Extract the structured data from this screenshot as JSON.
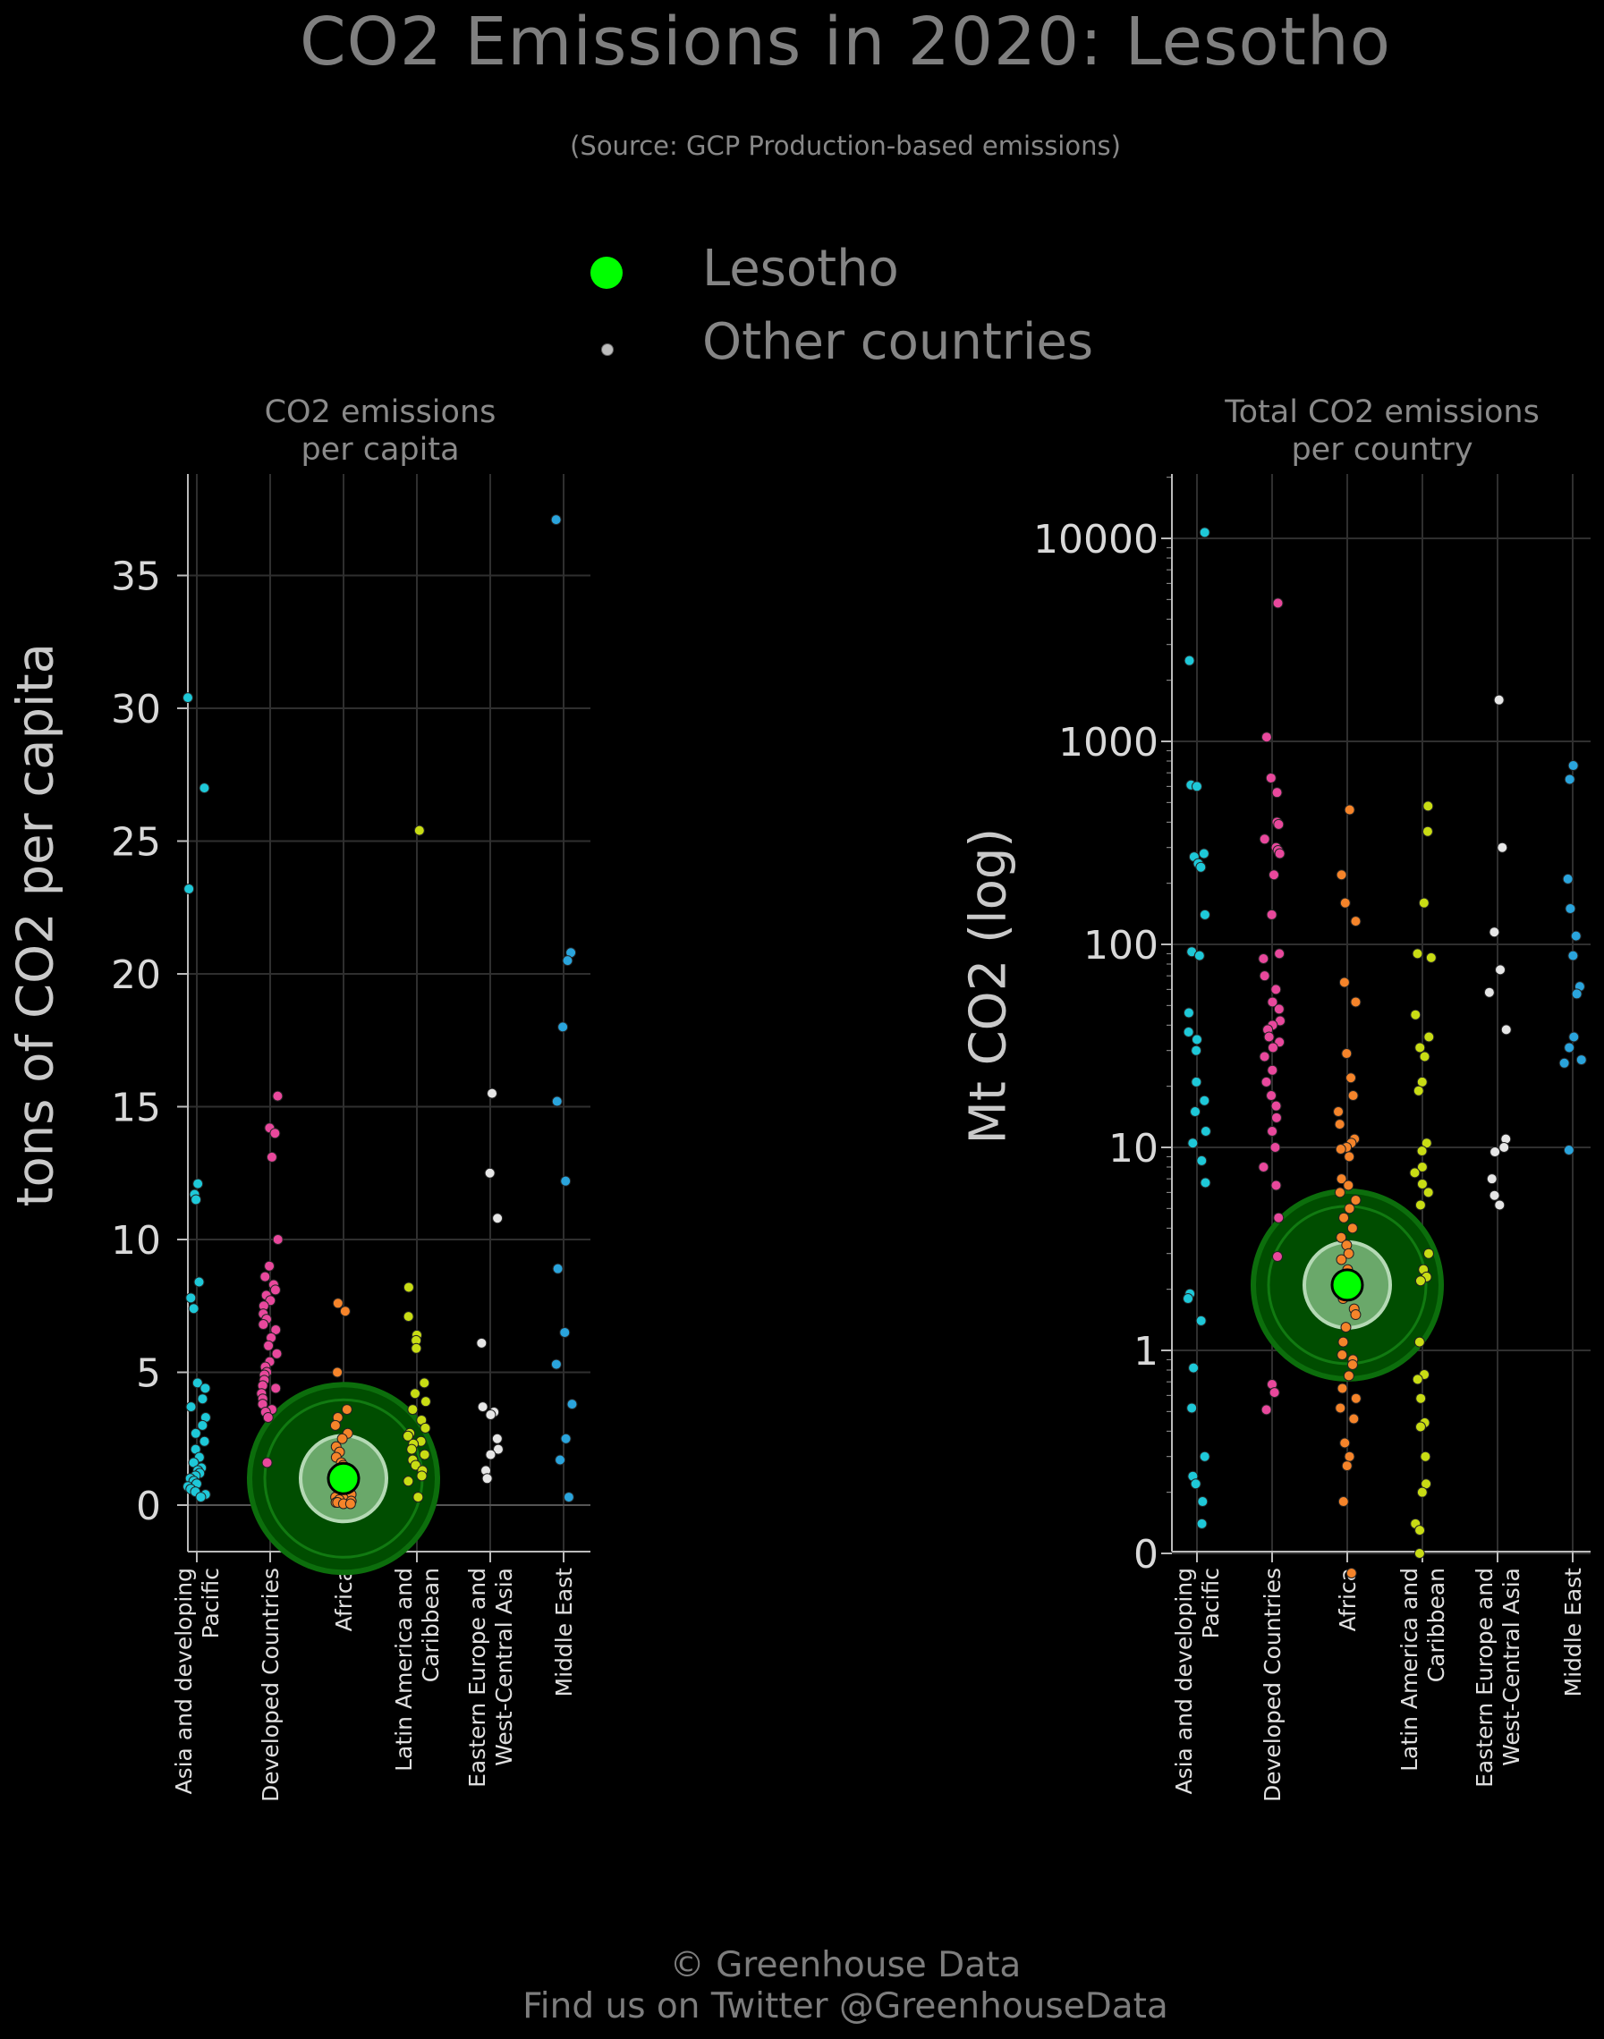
{
  "title": "CO2 Emissions in 2020: Lesotho",
  "subtitle": "(Source: GCP Production-based emissions)",
  "legend": {
    "highlight_label": "Lesotho",
    "other_label": "Other countries",
    "highlight_color": "#00ff00",
    "other_color": "#bdbdbd"
  },
  "footer": {
    "line1": "© Greenhouse Data",
    "line2": "Find us on Twitter @GreenhouseData"
  },
  "colors": {
    "Asia and developing Pacific": "#1ec8d8",
    "Developed Countries": "#e8489c",
    "Africa": "#f5842a",
    "Latin America and Caribbean": "#c8dc14",
    "Eastern Europe and West-Central Asia": "#e6e6e6",
    "Middle East": "#2aa4dc"
  },
  "chart_data": [
    {
      "type": "scatter",
      "title": "CO2 emissions\nper capita",
      "ylabel": "tons of CO2 per capita",
      "yscale": "linear",
      "ylim": [
        -1.8,
        39
      ],
      "yticks": [
        "0",
        "5",
        "10",
        "15",
        "20",
        "25",
        "30",
        "35"
      ],
      "categories": [
        "Asia and developing Pacific",
        "Developed Countries",
        "Africa",
        "Latin America and Caribbean",
        "Eastern Europe and West-Central Asia",
        "Middle East"
      ],
      "category_labels": [
        [
          "Asia and developing",
          "Pacific"
        ],
        [
          "Developed Countries"
        ],
        [
          "Africa"
        ],
        [
          "Latin America and",
          "Caribbean"
        ],
        [
          "Eastern Europe and",
          "West-Central Asia"
        ],
        [
          "Middle East"
        ]
      ],
      "highlight": {
        "category": "Africa",
        "value": 1.0
      },
      "series": [
        {
          "category": "Asia and developing Pacific",
          "values": [
            30.4,
            27.0,
            23.2,
            12.1,
            11.7,
            11.5,
            8.4,
            7.8,
            7.4,
            4.6,
            4.4,
            4.0,
            3.7,
            3.3,
            3.0,
            2.7,
            2.4,
            2.1,
            1.8,
            1.6,
            1.4,
            1.3,
            1.2,
            1.1,
            1.0,
            0.9,
            0.8,
            0.7,
            0.6,
            0.5,
            0.4,
            0.3
          ]
        },
        {
          "category": "Developed Countries",
          "values": [
            15.4,
            14.2,
            14.0,
            13.1,
            10.0,
            9.0,
            8.6,
            8.3,
            8.1,
            7.9,
            7.7,
            7.5,
            7.2,
            7.0,
            6.8,
            6.6,
            6.3,
            6.0,
            5.7,
            5.4,
            5.2,
            5.0,
            4.9,
            4.7,
            4.5,
            4.4,
            4.2,
            4.0,
            3.8,
            3.6,
            3.5,
            3.3,
            1.6
          ]
        },
        {
          "category": "Africa",
          "values": [
            7.6,
            7.3,
            5.0,
            3.6,
            3.3,
            3.0,
            2.7,
            2.5,
            2.2,
            2.0,
            1.8,
            1.6,
            1.5,
            1.3,
            1.2,
            1.1,
            1.0,
            0.9,
            0.8,
            0.7,
            0.6,
            0.5,
            0.4,
            0.35,
            0.3,
            0.25,
            0.2,
            0.15,
            0.1,
            0.1,
            0.05,
            0.05
          ]
        },
        {
          "category": "Latin America and Caribbean",
          "values": [
            25.4,
            8.2,
            7.1,
            6.4,
            6.2,
            5.9,
            4.6,
            4.2,
            3.9,
            3.6,
            3.2,
            2.9,
            2.7,
            2.6,
            2.4,
            2.3,
            2.1,
            1.9,
            1.7,
            1.5,
            1.3,
            1.1,
            0.9,
            0.3
          ]
        },
        {
          "category": "Eastern Europe and West-Central Asia",
          "values": [
            15.5,
            12.5,
            10.8,
            6.1,
            3.7,
            3.5,
            3.4,
            2.5,
            2.1,
            1.9,
            1.3,
            1.0
          ]
        },
        {
          "category": "Middle East",
          "values": [
            37.1,
            20.8,
            20.5,
            18.0,
            15.2,
            12.2,
            8.9,
            6.5,
            5.3,
            3.8,
            2.5,
            1.7,
            0.3
          ]
        }
      ]
    },
    {
      "type": "scatter",
      "title": "Total CO2 emissions\nper country",
      "ylabel": "Mt CO2 (log)",
      "yscale": "log",
      "ylim": [
        0,
        21000
      ],
      "yticks": [
        "0",
        "1",
        "10",
        "100",
        "1000",
        "10000"
      ],
      "categories": [
        "Asia and developing Pacific",
        "Developed Countries",
        "Africa",
        "Latin America and Caribbean",
        "Eastern Europe and West-Central Asia",
        "Middle East"
      ],
      "category_labels": [
        [
          "Asia and developing",
          "Pacific"
        ],
        [
          "Developed Countries"
        ],
        [
          "Africa"
        ],
        [
          "Latin America and",
          "Caribbean"
        ],
        [
          "Eastern Europe and",
          "West-Central Asia"
        ],
        [
          "Middle East"
        ]
      ],
      "highlight": {
        "category": "Africa",
        "value": 2.1
      },
      "series": [
        {
          "category": "Asia and developing Pacific",
          "values": [
            10700,
            2500,
            610,
            600,
            280,
            270,
            250,
            240,
            140,
            92,
            88,
            46,
            37,
            34,
            30,
            21,
            17,
            15,
            12,
            10.5,
            8.6,
            6.7,
            1.9,
            1.8,
            1.4,
            0.82,
            0.52,
            0.3,
            0.24,
            0.22,
            0.18,
            0.14
          ]
        },
        {
          "category": "Developed Countries",
          "values": [
            4800,
            1050,
            660,
            560,
            400,
            390,
            330,
            300,
            290,
            280,
            220,
            140,
            90,
            85,
            70,
            60,
            52,
            48,
            42,
            40,
            38,
            35,
            33,
            31,
            28,
            24,
            21,
            18,
            16,
            14,
            12,
            10,
            8,
            6.5,
            4.5,
            2.9,
            0.68,
            0.62,
            0.51
          ]
        },
        {
          "category": "Africa",
          "values": [
            460,
            220,
            160,
            130,
            65,
            52,
            29,
            22,
            18,
            15,
            13,
            11,
            10.5,
            10,
            9.8,
            9,
            7,
            6.5,
            6,
            5.5,
            5,
            4.5,
            4,
            3.6,
            3.3,
            3.0,
            2.8,
            2.5,
            2.3,
            2.1,
            2.0,
            1.8,
            1.6,
            1.5,
            1.3,
            1.1,
            0.95,
            0.9,
            0.85,
            0.75,
            0.65,
            0.58,
            0.52,
            0.46,
            0.35,
            0.3,
            0.27,
            0.18,
            0.08
          ]
        },
        {
          "category": "Latin America and Caribbean",
          "values": [
            480,
            360,
            160,
            90,
            86,
            45,
            35,
            31,
            28,
            21,
            19,
            10.5,
            9.6,
            8,
            7.5,
            6.6,
            6,
            5.2,
            3,
            2.5,
            2.3,
            2.2,
            1.1,
            0.76,
            0.72,
            0.58,
            0.44,
            0.42,
            0.3,
            0.22,
            0.2,
            0.14,
            0.13,
            0.1
          ]
        },
        {
          "category": "Eastern Europe and West-Central Asia",
          "values": [
            1600,
            300,
            115,
            75,
            58,
            38,
            11,
            10,
            9.5,
            7,
            5.8,
            5.2
          ]
        },
        {
          "category": "Middle East",
          "values": [
            760,
            650,
            210,
            150,
            110,
            88,
            62,
            57,
            35,
            31,
            27,
            26,
            9.7
          ]
        }
      ]
    }
  ]
}
